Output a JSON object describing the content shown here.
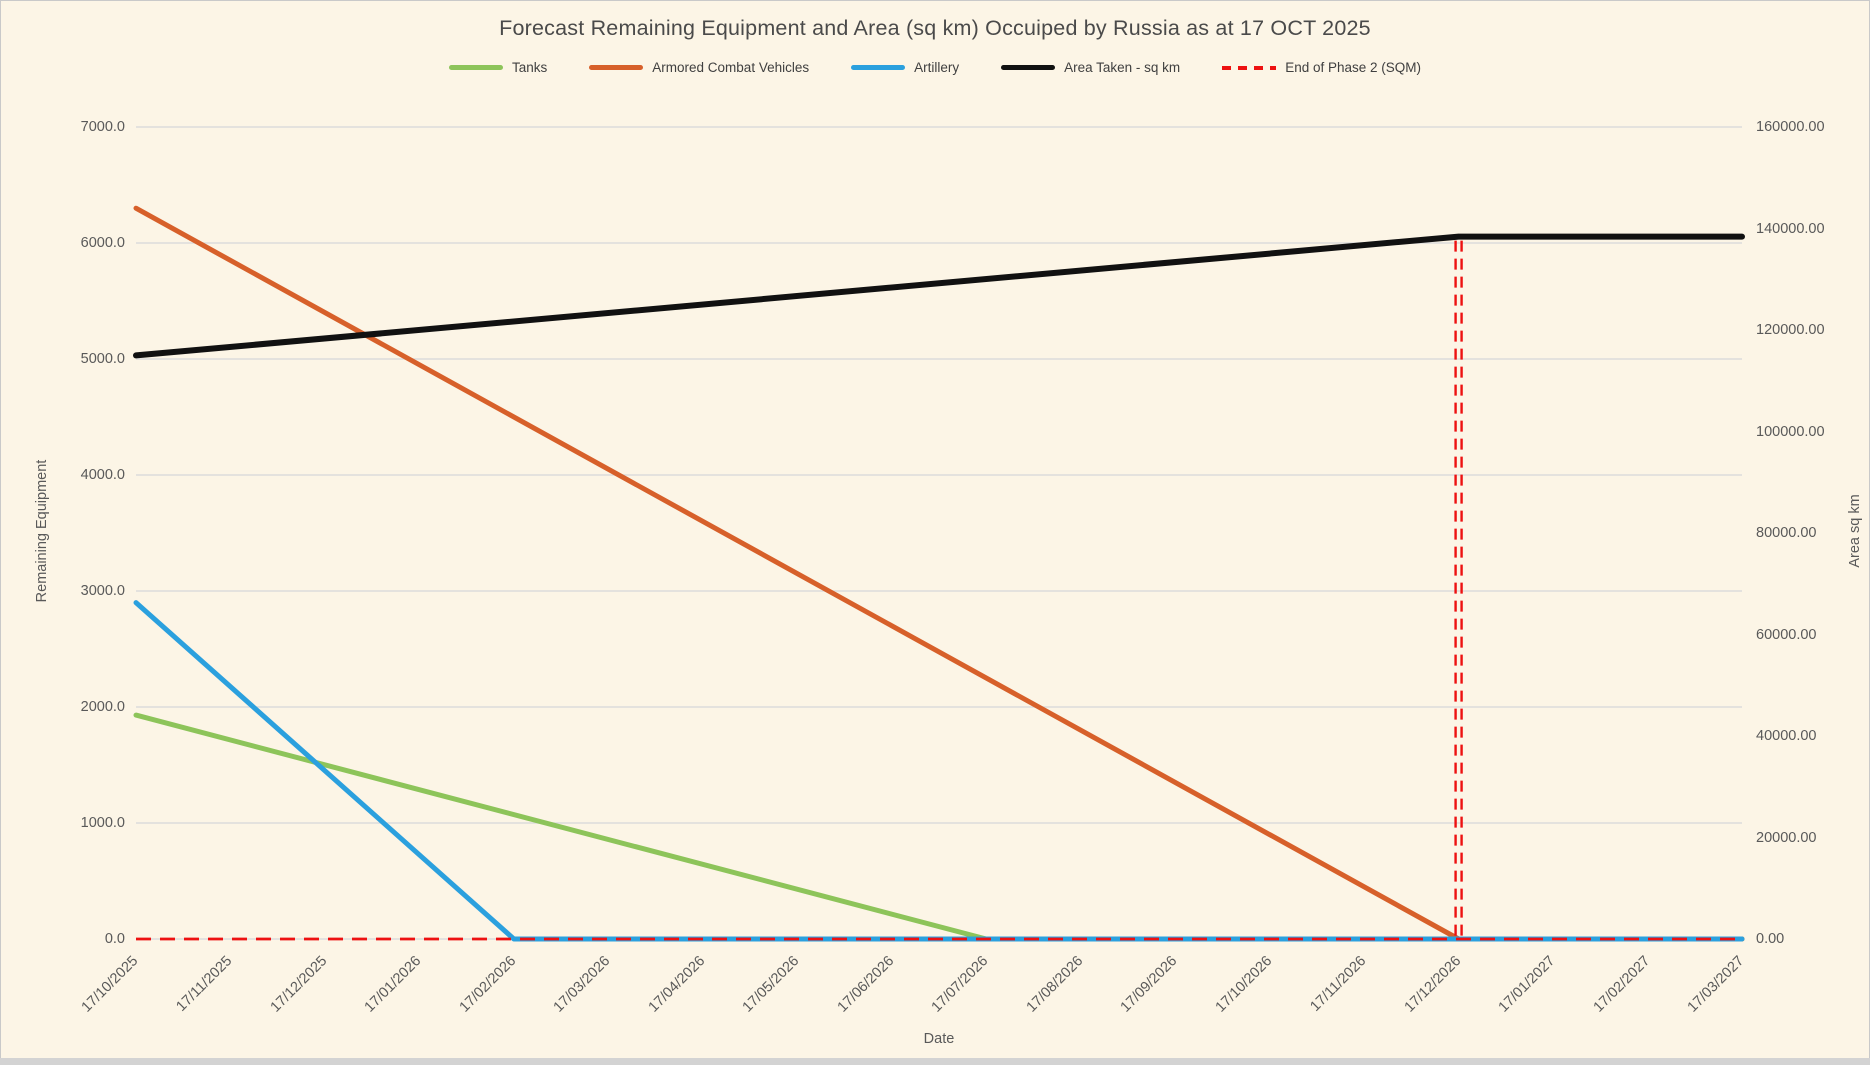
{
  "window": {
    "background_color": "#FCF5E6"
  },
  "chart_data": {
    "type": "line",
    "title": "Forecast Remaining Equipment and Area (sq km) Occuiped by Russia as at 17 OCT 2025",
    "xlabel": "Date",
    "ylabel_left": "Remaining Equipment",
    "ylabel_right": "Area sq km",
    "grid": true,
    "legend_position": "top",
    "colors": {
      "background": "#FCF5E6",
      "grid": "#DCDCDC",
      "tick_text": "#595959",
      "title_text": "#4A4A4A"
    },
    "x_categories": [
      "17/10/2025",
      "17/11/2025",
      "17/12/2025",
      "17/01/2026",
      "17/02/2026",
      "17/03/2026",
      "17/04/2026",
      "17/05/2026",
      "17/06/2026",
      "17/07/2026",
      "17/08/2026",
      "17/09/2026",
      "17/10/2026",
      "17/11/2026",
      "17/12/2026",
      "17/01/2027",
      "17/02/2027",
      "17/03/2027"
    ],
    "y_left_axis": {
      "min": 0,
      "max": 7000,
      "tick_values": [
        0,
        1000,
        2000,
        3000,
        4000,
        5000,
        6000,
        7000
      ],
      "tick_labels": [
        "0.0",
        "1000.0",
        "2000.0",
        "3000.0",
        "4000.0",
        "5000.0",
        "6000.0",
        "7000.0"
      ]
    },
    "y_right_axis": {
      "min": 0,
      "max": 160000,
      "tick_values": [
        0,
        20000,
        40000,
        60000,
        80000,
        100000,
        120000,
        140000,
        160000
      ],
      "tick_labels": [
        "0.00",
        "20000.00",
        "40000.00",
        "60000.00",
        "80000.00",
        "100000.00",
        "120000.00",
        "140000.00",
        "160000.00"
      ]
    },
    "legend": [
      {
        "label": "Tanks",
        "color": "#8DC45A",
        "dash": false
      },
      {
        "label": "Armored Combat Vehicles",
        "color": "#D7602A",
        "dash": false
      },
      {
        "label": "Artillery",
        "color": "#2BA0DE",
        "dash": false
      },
      {
        "label": "Area Taken - sq km",
        "color": "#111111",
        "dash": false
      },
      {
        "label": "End of Phase 2 (SQM)",
        "color": "#ED1111",
        "dash": true
      }
    ],
    "series": [
      {
        "name": "Tanks",
        "color": "#8DC45A",
        "axis": "left",
        "style": "solid",
        "points": [
          {
            "date": "17/10/2025",
            "value": 1930
          },
          {
            "date": "17/07/2026",
            "value": 0
          },
          {
            "date": "17/03/2027",
            "value": 0
          }
        ]
      },
      {
        "name": "Armored Combat Vehicles",
        "color": "#D7602A",
        "axis": "left",
        "style": "solid",
        "points": [
          {
            "date": "17/10/2025",
            "value": 6300
          },
          {
            "date": "17/12/2026",
            "value": 0
          },
          {
            "date": "17/03/2027",
            "value": 0
          }
        ]
      },
      {
        "name": "Artillery",
        "color": "#2BA0DE",
        "axis": "left",
        "style": "solid",
        "points": [
          {
            "date": "17/10/2025",
            "value": 2900
          },
          {
            "date": "17/02/2026",
            "value": 0
          },
          {
            "date": "17/03/2027",
            "value": 0
          }
        ]
      },
      {
        "name": "Area Taken - sq km",
        "color": "#111111",
        "axis": "right",
        "style": "solid",
        "points": [
          {
            "date": "17/10/2025",
            "value": 115000
          },
          {
            "date": "17/12/2026",
            "value": 138400
          },
          {
            "date": "17/03/2027",
            "value": 138400
          }
        ]
      }
    ],
    "phase2_marker": {
      "label": "End of Phase 2 (SQM)",
      "color": "#ED1111",
      "style": "dashed",
      "date": "17/12/2026",
      "horizontal_at_left_value": 0,
      "vertical_top_right_value": 138400
    }
  }
}
